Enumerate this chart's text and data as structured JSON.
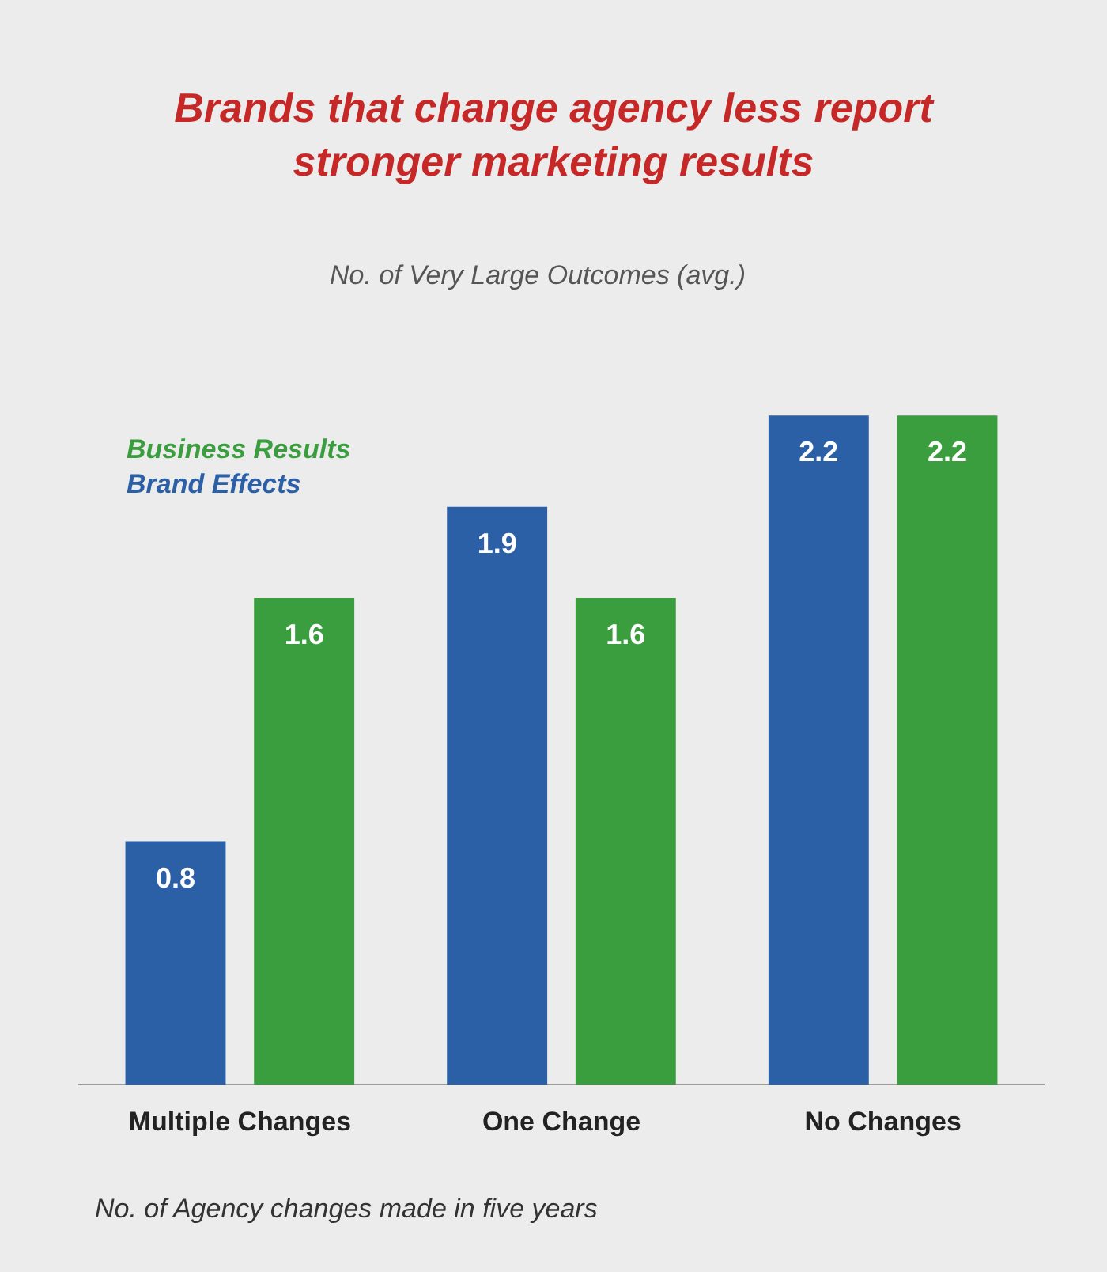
{
  "chart_data": {
    "type": "bar",
    "title": "Brands that change agency less report stronger marketing results",
    "ylabel": "No. of Very Large Outcomes (avg.)",
    "xlabel": "No. of Agency changes made in five years",
    "categories": [
      "Multiple Changes",
      "One Change",
      "No Changes"
    ],
    "series": [
      {
        "name": "Brand Effects",
        "color": "#2b5fa6",
        "values": [
          0.8,
          1.9,
          2.2
        ]
      },
      {
        "name": "Business Results",
        "color": "#3a9e3f",
        "values": [
          1.6,
          1.6,
          2.2
        ]
      }
    ],
    "data_labels": true,
    "legend": "top left",
    "tick_labels": "x"
  }
}
